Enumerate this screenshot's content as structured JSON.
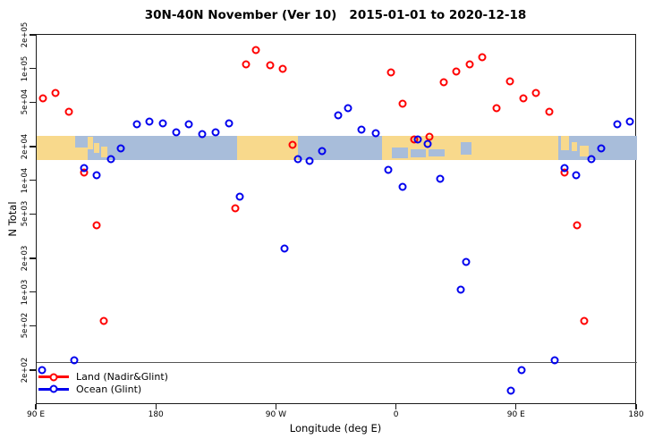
{
  "title": "30N-40N November (Ver 10)   2015-01-01 to 2020-12-18",
  "chart_data": {
    "type": "scatter",
    "title": "30N-40N November (Ver 10)   2015-01-01 to 2020-12-18",
    "xlabel": "Longitude (deg E)",
    "ylabel": "N Total",
    "x_axis": {
      "range_axis_degrees": [
        90,
        540
      ],
      "ticks": [
        90,
        180,
        270,
        360,
        450,
        540
      ],
      "tick_labels": [
        "90 E",
        "180",
        "90 W",
        "0",
        "90 E",
        "180"
      ],
      "note": "axis spans 450 degrees of longitude; data with longitude 90E-180E is drawn at both ends"
    },
    "y_axis": {
      "scale": "log",
      "range": [
        100,
        204000
      ],
      "tick_values": [
        200000,
        100000,
        50000,
        20000,
        10000,
        5000,
        2000,
        1000,
        500,
        200
      ],
      "tick_labels": [
        "2e+05",
        "1e+05",
        "5e+04",
        "2e+04",
        "1e+04",
        "5e+03",
        "2e+03",
        "1e+03",
        "5e+02",
        "2e+02"
      ]
    },
    "grid": false,
    "reference_line_value": 240,
    "legend_position": "bottom-left-inside",
    "legend": [
      {
        "label": "Land (Nadir&Glint)",
        "color": "#ff0000"
      },
      {
        "label": "Ocean (Glint)",
        "color": "#0000ee"
      }
    ],
    "series": [
      {
        "name": "Land (Nadir&Glint)",
        "color": "#ff0000",
        "points_lon_value": [
          [
            94.5,
            55000
          ],
          [
            104,
            61000
          ],
          [
            114,
            42000
          ],
          [
            125.4,
            12000
          ],
          [
            135,
            4000
          ],
          [
            140.6,
            560
          ],
          [
            238.9,
            5700
          ],
          [
            246.7,
            111000
          ],
          [
            254.5,
            149000
          ],
          [
            264.8,
            108000
          ],
          [
            274.4,
            101000
          ],
          [
            281.6,
            21000
          ],
          [
            355.5,
            94000
          ],
          [
            4.5,
            49000
          ],
          [
            12.8,
            23500
          ],
          [
            24.6,
            24800
          ],
          [
            35.1,
            77000
          ],
          [
            44.5,
            96000
          ],
          [
            54.5,
            110000
          ],
          [
            64.2,
            129000
          ],
          [
            74.9,
            45000
          ],
          [
            84.7,
            78000
          ]
        ]
      },
      {
        "name": "Ocean (Glint)",
        "color": "#0000ee",
        "points_lon_value": [
          [
            93.7,
            203
          ],
          [
            118.2,
            250
          ],
          [
            125.4,
            13200
          ],
          [
            134.7,
            11200
          ],
          [
            145.5,
            15700
          ],
          [
            153.2,
            19600
          ],
          [
            165.2,
            32000
          ],
          [
            174.8,
            34000
          ],
          [
            184.3,
            32700
          ],
          [
            194.6,
            27600
          ],
          [
            204,
            32000
          ],
          [
            214.3,
            26200
          ],
          [
            224.3,
            27200
          ],
          [
            234,
            33000
          ],
          [
            242.4,
            7300
          ],
          [
            275.9,
            2500
          ],
          [
            285.6,
            15800
          ],
          [
            294.5,
            15300
          ],
          [
            303.9,
            18700
          ],
          [
            315.8,
            39000
          ],
          [
            323.6,
            45000
          ],
          [
            333.6,
            29000
          ],
          [
            344.1,
            27000
          ],
          [
            353.7,
            12700
          ],
          [
            4.3,
            8900
          ],
          [
            15.7,
            23700
          ],
          [
            23.3,
            21600
          ],
          [
            32.4,
            10400
          ],
          [
            48,
            1070
          ],
          [
            51.9,
            1900
          ],
          [
            85.7,
            134
          ]
        ]
      }
    ],
    "map_band": {
      "description": "30N-40N latitude strip map drawn across plot",
      "land_color": "#f8d98c",
      "ocean_color": "#a8bdda",
      "y_top_value": 25500,
      "y_bottom_value": 15500,
      "segments": [
        {
          "type": "land",
          "from": 90,
          "to": 128,
          "top": 0,
          "bottom": 1
        },
        {
          "type": "land",
          "from": 240,
          "to": 285.5,
          "top": 0,
          "bottom": 1
        },
        {
          "type": "land",
          "from": 349,
          "to": 474,
          "top": 0,
          "bottom": 1
        },
        {
          "type": "ocean",
          "from": 119,
          "to": 128,
          "top": 0,
          "bottom": 0.5
        },
        {
          "type": "ocean",
          "from": 356,
          "to": 368,
          "top": 0.5,
          "bottom": 0.95
        },
        {
          "type": "ocean",
          "from": 370,
          "to": 382,
          "top": 0.55,
          "bottom": 0.9
        },
        {
          "type": "ocean",
          "from": 384,
          "to": 396,
          "top": 0.55,
          "bottom": 0.85
        },
        {
          "type": "ocean",
          "from": 408,
          "to": 416,
          "top": 0.25,
          "bottom": 0.8
        },
        {
          "type": "land",
          "from": 128,
          "to": 132,
          "top": 0.05,
          "bottom": 0.55
        },
        {
          "type": "land",
          "from": 133,
          "to": 137,
          "top": 0.3,
          "bottom": 0.7
        },
        {
          "type": "land",
          "from": 138,
          "to": 143,
          "top": 0.45,
          "bottom": 0.9
        },
        {
          "type": "land",
          "from": 474,
          "to": 481,
          "top": 0,
          "bottom": 1
        },
        {
          "type": "land",
          "from": 483,
          "to": 489,
          "top": 0,
          "bottom": 0.6
        },
        {
          "type": "land",
          "from": 491,
          "to": 495,
          "top": 0.25,
          "bottom": 0.65
        },
        {
          "type": "land",
          "from": 497,
          "to": 504,
          "top": 0.4,
          "bottom": 0.85
        }
      ]
    }
  }
}
